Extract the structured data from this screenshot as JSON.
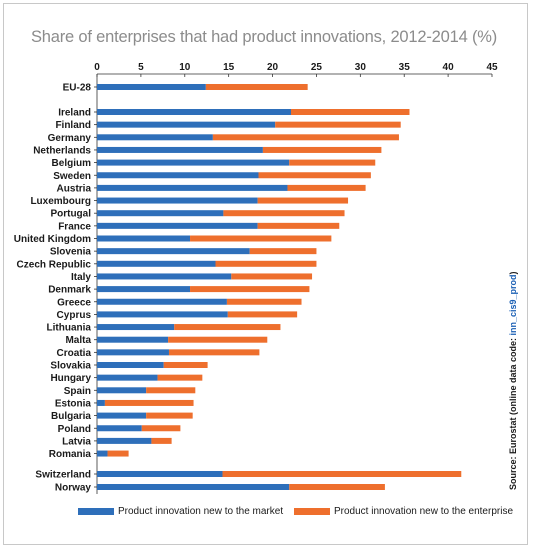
{
  "chart_data": {
    "type": "bar",
    "orientation": "horizontal",
    "stacked": true,
    "title": "Share of enterprises that had product innovations, 2012-2014 (%)",
    "xlim": [
      0,
      45
    ],
    "xticks": [
      0,
      5,
      10,
      15,
      20,
      25,
      30,
      35,
      40,
      45
    ],
    "categories": [
      "EU-28",
      "Ireland",
      "Finland",
      "Germany",
      "Netherlands",
      "Belgium",
      "Sweden",
      "Austria",
      "Luxembourg",
      "Portugal",
      "France",
      "United Kingdom",
      "Slovenia",
      "Czech Republic",
      "Italy",
      "Denmark",
      "Greece",
      "Cyprus",
      "Lithuania",
      "Malta",
      "Croatia",
      "Slovakia",
      "Hungary",
      "Spain",
      "Estonia",
      "Bulgaria",
      "Poland",
      "Latvia",
      "Romania",
      "Switzerland",
      "Norway"
    ],
    "series": [
      {
        "name": "Product innovation new to the market",
        "color": "#2e6fba",
        "values": [
          12.4,
          22.1,
          20.3,
          13.2,
          18.9,
          21.9,
          18.4,
          21.7,
          18.3,
          14.4,
          18.3,
          10.6,
          17.4,
          13.5,
          15.3,
          10.6,
          14.8,
          14.9,
          8.8,
          8.1,
          8.2,
          7.6,
          6.9,
          5.6,
          0.9,
          5.6,
          5.1,
          6.2,
          1.2,
          14.3,
          21.9
        ]
      },
      {
        "name": "Product innovation new to the enterprise",
        "color": "#ee6f2d",
        "values": [
          11.6,
          13.5,
          14.3,
          21.2,
          13.5,
          9.8,
          12.8,
          8.9,
          10.3,
          13.8,
          9.3,
          16.1,
          7.6,
          11.5,
          9.2,
          13.6,
          8.5,
          7.9,
          12.1,
          11.3,
          10.3,
          5.0,
          5.1,
          5.6,
          10.1,
          5.3,
          4.4,
          2.3,
          2.4,
          27.2,
          10.9
        ]
      }
    ],
    "legend_position": "bottom",
    "source_text": "Source: Eurostat (online data code: ",
    "source_code": "inn_cis9_prod",
    "source_close": ")"
  }
}
